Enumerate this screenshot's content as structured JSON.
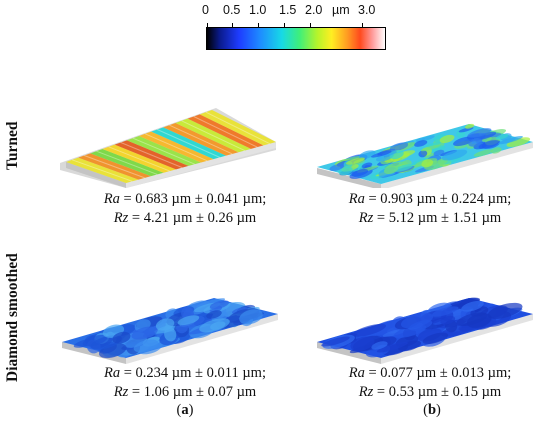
{
  "scale": {
    "ticks": [
      "0",
      "0.5",
      "1.0",
      "1.5",
      "2.0"
    ],
    "unit": "µm",
    "max": "3.0",
    "tick_values": [
      0,
      0.5,
      1.0,
      1.5,
      2.0,
      3.0
    ],
    "range": [
      0,
      3.5
    ]
  },
  "rows": [
    {
      "label": "Turned"
    },
    {
      "label": "Diamond smoothed"
    }
  ],
  "panels": [
    {
      "label_open": "(",
      "label_letter": "a",
      "label_close": ")"
    },
    {
      "label_open": "(",
      "label_letter": "b",
      "label_close": ")"
    }
  ],
  "captions": {
    "a_turned": {
      "ra_sym": "Ra",
      "ra_val": " = 0.683 µm ± 0.041 µm;",
      "rz_sym": "Rz",
      "rz_val": " = 4.21 µm ± 0.26 µm"
    },
    "b_turned": {
      "ra_sym": "Ra",
      "ra_val": " = 0.903 µm ± 0.224 µm;",
      "rz_sym": "Rz",
      "rz_val": " = 5.12 µm ± 1.51 µm"
    },
    "a_smoothed": {
      "ra_sym": "Ra",
      "ra_val": " = 0.234 µm ± 0.011 µm;",
      "rz_sym": "Rz",
      "rz_val": " = 1.06 µm ± 0.07 µm"
    },
    "b_smoothed": {
      "ra_sym": "Ra",
      "ra_val": " = 0.077 µm ± 0.013 µm;",
      "rz_sym": "Rz",
      "rz_val": " = 0.53 µm ± 0.15 µm"
    }
  },
  "colors": {
    "turned_a_stripes": [
      "#e9e23a",
      "#f0932e",
      "#7fd94a",
      "#f3d42f",
      "#e3632a",
      "#9be34a",
      "#f6b830",
      "#2fd8d2",
      "#f29a2e",
      "#c9ea3a",
      "#ef7a2b",
      "#e9e23a"
    ],
    "turned_b_base": "#3fc8e8",
    "smoothed_base": "#2a6fe6",
    "smoothed_b_base": "#1f4fe0",
    "side_grey": "#d4d4d4"
  }
}
